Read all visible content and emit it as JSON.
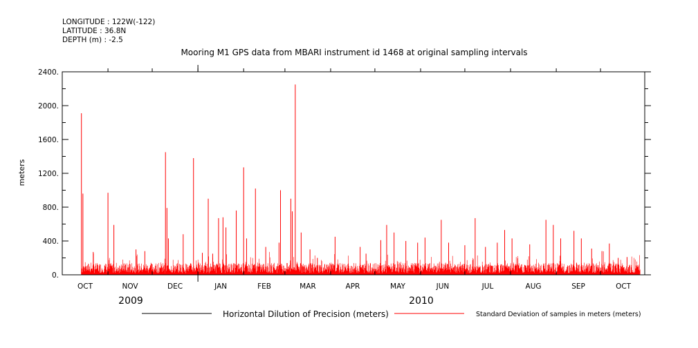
{
  "header": {
    "lines": [
      "LONGITUDE : 122W(-122)",
      "LATITUDE : 36.8N",
      "DEPTH (m) : -2.5"
    ]
  },
  "chart_data": {
    "type": "line",
    "title": "Mooring M1 GPS data from MBARI instrument id 1468 at original sampling intervals",
    "ylabel": "meters",
    "xlabel": "",
    "ylim": [
      0,
      2400
    ],
    "yticks": [
      0,
      400,
      800,
      1200,
      1600,
      2000,
      2400
    ],
    "ytick_labels": [
      "0.",
      "400.",
      "800.",
      "1200.",
      "1600.",
      "2000.",
      "2400."
    ],
    "x_range": [
      "2009-10-01",
      "2010-10-31"
    ],
    "month_labels": [
      "OCT",
      "NOV",
      "DEC",
      "JAN",
      "FEB",
      "MAR",
      "APR",
      "MAY",
      "JUN",
      "JUL",
      "AUG",
      "SEP",
      "OCT"
    ],
    "year_labels": [
      "2009",
      "2010"
    ],
    "grid": false,
    "legend": "bottom",
    "colors": {
      "hdop": "#000000",
      "stdev": "#ff0000"
    },
    "series": [
      {
        "name": "Horizontal Dilution of Precision (meters)",
        "color": "#000000",
        "x": [],
        "y": []
      },
      {
        "name": "Standard Deviation of samples in meters (meters)",
        "color": "#ff0000",
        "x": [
          "2009-10-14",
          "2009-10-15",
          "2009-10-22",
          "2009-11-01",
          "2009-11-05",
          "2009-11-20",
          "2009-11-26",
          "2009-12-10",
          "2009-12-11",
          "2009-12-12",
          "2009-12-22",
          "2009-12-29",
          "2010-01-04",
          "2010-01-08",
          "2010-01-11",
          "2010-01-15",
          "2010-01-18",
          "2010-01-20",
          "2010-01-27",
          "2010-02-01",
          "2010-02-03",
          "2010-02-09",
          "2010-02-16",
          "2010-02-25",
          "2010-02-26",
          "2010-03-05",
          "2010-03-06",
          "2010-03-08",
          "2010-03-12",
          "2010-03-18",
          "2010-03-23",
          "2010-04-04",
          "2010-04-21",
          "2010-04-25",
          "2010-05-05",
          "2010-05-09",
          "2010-05-14",
          "2010-05-22",
          "2010-05-30",
          "2010-06-04",
          "2010-06-15",
          "2010-06-20",
          "2010-07-01",
          "2010-07-08",
          "2010-07-15",
          "2010-07-23",
          "2010-07-28",
          "2010-08-02",
          "2010-08-14",
          "2010-08-25",
          "2010-08-30",
          "2010-09-04",
          "2010-09-13",
          "2010-09-18",
          "2010-09-25",
          "2010-10-02",
          "2010-10-07",
          "2010-10-13",
          "2010-10-19"
        ],
        "y": [
          1910,
          960,
          270,
          970,
          590,
          300,
          280,
          1450,
          790,
          430,
          480,
          1380,
          260,
          900,
          250,
          670,
          680,
          560,
          760,
          1270,
          430,
          1020,
          330,
          380,
          1000,
          900,
          750,
          2250,
          500,
          300,
          200,
          450,
          330,
          250,
          410,
          590,
          500,
          400,
          380,
          440,
          650,
          380,
          350,
          670,
          330,
          380,
          530,
          430,
          360,
          650,
          590,
          430,
          520,
          430,
          310,
          280,
          370,
          200,
          210
        ]
      }
    ]
  }
}
